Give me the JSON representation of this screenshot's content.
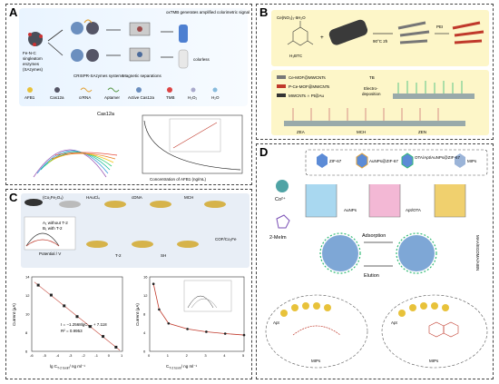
{
  "panels": {
    "A": {
      "label": "A",
      "top_labels": {
        "fe_nc": "Fe-N-C",
        "singleatom": "singleatom",
        "enzymes": "enzymes",
        "sazymes": "(SAzymes)",
        "crispr": "CRISPR-SAzymes systems",
        "magnetic": "Magnetic separations",
        "oxtmb": "oxTMB generates amplified colorimetric signal",
        "colorless": "colorless"
      },
      "legend": [
        "AFB1",
        "Cas12a",
        "crRNA",
        "Aptamer",
        "Active Cas12a",
        "TMB",
        "H₂O₂",
        "H₂O"
      ],
      "spectra_label": "Cas12a",
      "axis_label": "Concentration of AFB1 (ng/mL)"
    },
    "B": {
      "label": "B",
      "reagent": "Ce(NO₃)₃·6H₂O",
      "linker": "H₃BTC",
      "cond": "90°C 2h",
      "pei": "PEI",
      "tb": "TB",
      "electro": "Electro-",
      "deposition": "deposition",
      "legend": [
        "Ce-MOF@MWCNTs",
        "P-Ce-MOF@MWCNTs",
        "MWCNTs ∩ Pt@Au"
      ],
      "steps": [
        "ZEA",
        "MCH",
        "ZEN"
      ]
    },
    "C": {
      "label": "C",
      "steps": [
        "(Co₁Fe₂O₄)",
        "HAuCl₄",
        "cDNA",
        "MCH",
        "T-2",
        "SH",
        "T-2"
      ],
      "legend_lines": [
        "A₁ without T-2",
        "B₁ with T-2"
      ],
      "potential": "Potential / V",
      "current": "Current",
      "cofe": "COF/Co₂Fe",
      "plot1": {
        "ylabel": "Current (μA)",
        "xlabel": "lg C",
        "xlabel_sub": "T-2 toxin",
        "xlabel_unit": "/ ng ml⁻¹",
        "eq": "I = −1.2568lgC",
        "eq_sub": "T-2",
        "eq_tail": " + 7.118",
        "r2": "R² = 0.9953"
      },
      "plot2": {
        "ylabel": "Current (μA)",
        "xlabel": "C",
        "xlabel_sub": "T-2 toxin",
        "xlabel_unit": "/ ng ml⁻¹"
      }
    },
    "D": {
      "label": "D",
      "legend": [
        "ZIF-67",
        "AuNPs@ZIF-67",
        "OTA/Apt/AuNPs@ZIF-67",
        "MIPs"
      ],
      "co": "Co²⁺",
      "mim": "2-MeIm",
      "aunps": "AuNPs",
      "apt_ota": "Apt/OTA",
      "adsorption": "Adsorption",
      "elution": "Elution",
      "reagents_side": "MAA/EGDMA/AIBN",
      "apt1": "Apt",
      "apt2": "Apt",
      "mips1": "MIPs",
      "mips2": "MIPs"
    }
  },
  "chart_data": [
    {
      "type": "scatter",
      "title": "",
      "xlabel": "lg C T-2 toxin / ng ml⁻¹",
      "ylabel": "Current (μA)",
      "xlim": [
        -6,
        1
      ],
      "ylim": [
        6,
        15
      ],
      "x": [
        -5.5,
        -4.5,
        -3.5,
        -2.5,
        -1.5,
        -0.5,
        0.5
      ],
      "y": [
        14.0,
        12.8,
        11.5,
        10.2,
        9.0,
        7.8,
        6.5
      ],
      "xticks": [
        "-6",
        "-5",
        "-4",
        "-3",
        "-2",
        "-1",
        "0",
        "1"
      ],
      "yticks": [
        "6",
        "8",
        "10",
        "12",
        "14"
      ],
      "fit": {
        "slope": -1.2568,
        "intercept": 7.118
      }
    },
    {
      "type": "line",
      "title": "",
      "xlabel": "C T-2 toxin / ng ml⁻¹",
      "ylabel": "Current (μA)",
      "xlim": [
        0,
        5
      ],
      "ylim": [
        0,
        16
      ],
      "x": [
        0.2,
        0.5,
        1.0,
        2.0,
        3.0,
        4.0,
        5.0
      ],
      "y": [
        14.5,
        9.0,
        6.0,
        4.8,
        4.2,
        3.8,
        3.5
      ],
      "xticks": [
        "0",
        "1",
        "2",
        "3",
        "4",
        "5"
      ],
      "yticks": [
        "0",
        "4",
        "8",
        "12",
        "16"
      ]
    }
  ]
}
